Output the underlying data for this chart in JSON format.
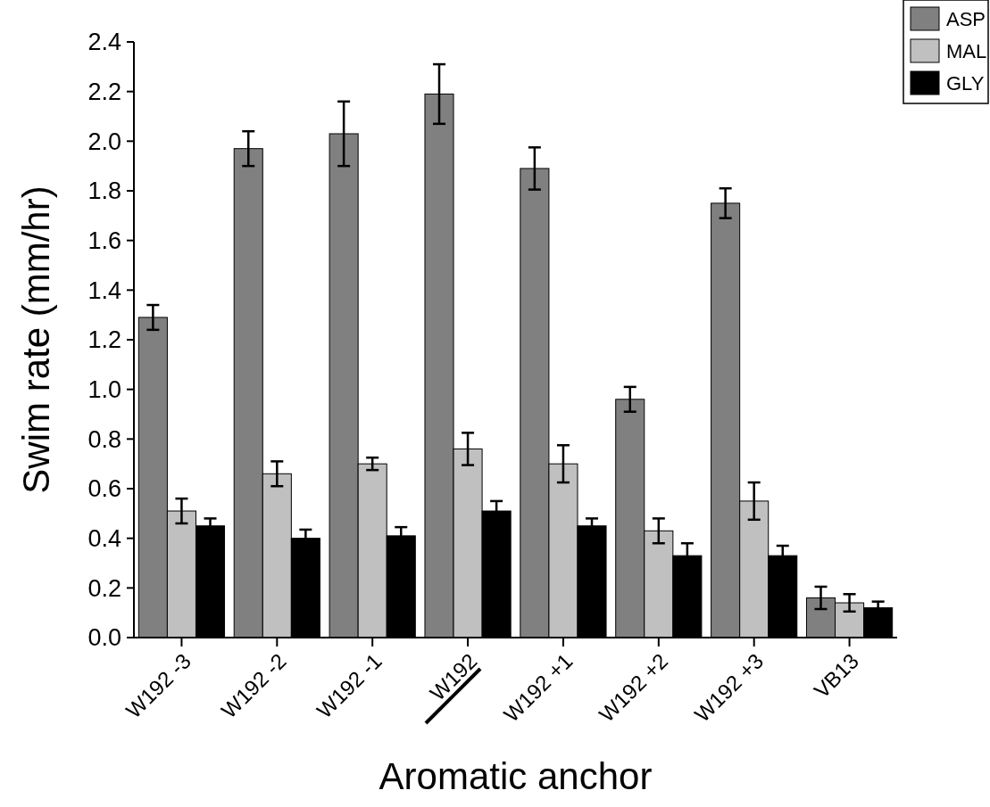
{
  "chart_data": {
    "type": "bar",
    "xlabel": "Aromatic anchor",
    "ylabel": "Swim rate (mm/hr)",
    "categories": [
      "W192 -3",
      "W192 -2",
      "W192 -1",
      "W192",
      "W192 +1",
      "W192 +2",
      "W192 +3",
      "VB13"
    ],
    "series": [
      {
        "name": "ASP",
        "color": "#808080",
        "values": [
          1.29,
          1.97,
          2.03,
          2.19,
          1.89,
          0.96,
          1.75,
          0.16
        ],
        "errors": [
          0.05,
          0.07,
          0.13,
          0.12,
          0.085,
          0.05,
          0.06,
          0.045
        ]
      },
      {
        "name": "MAL",
        "color": "#c0c0c0",
        "values": [
          0.51,
          0.66,
          0.7,
          0.76,
          0.7,
          0.43,
          0.55,
          0.14
        ],
        "errors": [
          0.05,
          0.05,
          0.025,
          0.065,
          0.075,
          0.05,
          0.075,
          0.035
        ]
      },
      {
        "name": "GLY",
        "color": "#000000",
        "values": [
          0.45,
          0.4,
          0.41,
          0.51,
          0.45,
          0.33,
          0.33,
          0.12
        ],
        "errors": [
          0.03,
          0.035,
          0.035,
          0.04,
          0.03,
          0.05,
          0.04,
          0.025
        ]
      }
    ],
    "ylim": [
      0,
      2.4
    ],
    "yticks": [
      {
        "value": 0,
        "label": "0.0"
      },
      {
        "value": 0.2,
        "label": "0.2"
      },
      {
        "value": 0.4,
        "label": "0.4"
      },
      {
        "value": 0.6,
        "label": "0.6"
      },
      {
        "value": 0.8,
        "label": "0.8"
      },
      {
        "value": 1.0,
        "label": "1.0"
      },
      {
        "value": 1.2,
        "label": "1.2"
      },
      {
        "value": 1.4,
        "label": "1.4"
      },
      {
        "value": 1.6,
        "label": "1.6"
      },
      {
        "value": 1.8,
        "label": "1.8"
      },
      {
        "value": 2.0,
        "label": "2.0"
      },
      {
        "value": 2.2,
        "label": "2.2"
      },
      {
        "value": 2.4,
        "label": "2.4"
      }
    ],
    "grid": false,
    "legend": "top right"
  }
}
